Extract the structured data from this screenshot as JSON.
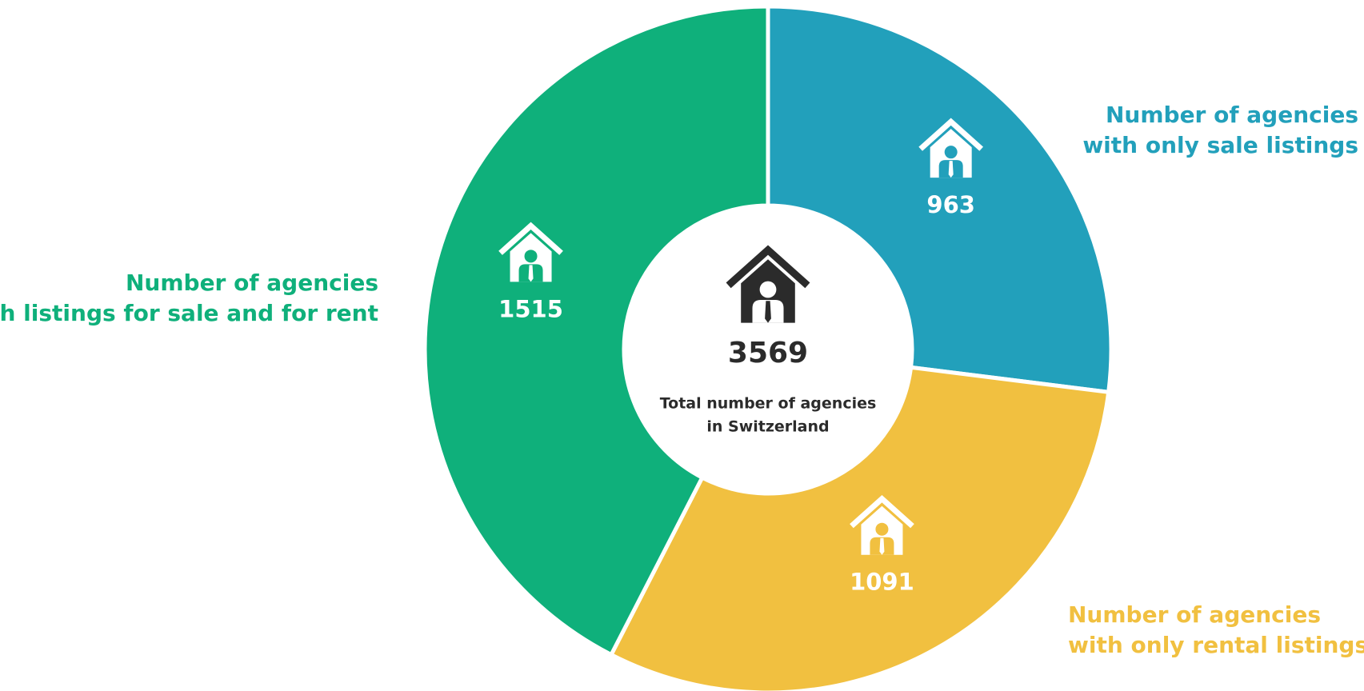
{
  "chart_data": {
    "type": "donut",
    "series": [
      {
        "name": [
          "Number of agencies",
          "with only sale listings"
        ],
        "color": "#22a0bb",
        "value": 963
      },
      {
        "name": [
          "Number of agencies",
          "with only rental listings"
        ],
        "color": "#f1c040",
        "value": 1091
      },
      {
        "name": [
          "Number of agencies",
          "with listings for sale and for rent"
        ],
        "color": "#0fb07b",
        "value": 1515
      }
    ],
    "total": 3569,
    "total_label": [
      "Total number of agencies",
      "in Switzerland"
    ],
    "center_color": "#2b2b2b"
  }
}
